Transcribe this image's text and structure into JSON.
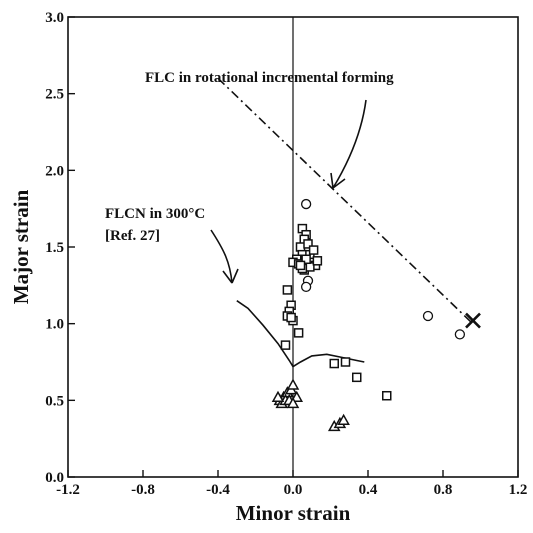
{
  "chart_data": {
    "type": "scatter",
    "title": "",
    "xlabel": "Minor strain",
    "ylabel": "Major strain",
    "xlim": [
      -1.2,
      1.2
    ],
    "ylim": [
      0.0,
      3.0
    ],
    "x_ticks": [
      "-1.2",
      "-0.8",
      "-0.4",
      "0.0",
      "0.4",
      "0.8",
      "1.2"
    ],
    "y_ticks": [
      "0.0",
      "0.5",
      "1.0",
      "1.5",
      "2.0",
      "2.5",
      "3.0"
    ],
    "grid": false,
    "legend": "none",
    "annotations": {
      "flc_label": "FLC in rotational incremental forming",
      "flcn_label_1": "FLCN in 300°C",
      "flcn_label_2": "[Ref. 27]"
    },
    "series": [
      {
        "kind": "line-dashdot",
        "label_ref": "flc_label",
        "x": [
          -0.4,
          0.95
        ],
        "y": [
          2.6,
          1.01
        ]
      },
      {
        "kind": "line-solid",
        "label_ref": "flcn_label_1",
        "x": [
          -0.3,
          -0.24,
          -0.16,
          -0.08,
          -0.02,
          0.0,
          0.04,
          0.1,
          0.18,
          0.26,
          0.34,
          0.38
        ],
        "y": [
          1.15,
          1.1,
          0.99,
          0.87,
          0.76,
          0.72,
          0.75,
          0.79,
          0.8,
          0.78,
          0.76,
          0.75
        ]
      },
      {
        "kind": "squares",
        "x": [
          0.05,
          0.07,
          0.06,
          0.04,
          0.08,
          0.05,
          0.02,
          0.09,
          0.11,
          0.1,
          0.12,
          0.0,
          0.03,
          0.06,
          0.09,
          0.13,
          0.07,
          0.05,
          0.04,
          -0.03,
          -0.01,
          -0.02,
          -0.03,
          0.0,
          -0.01,
          0.03,
          -0.04,
          0.22,
          0.28,
          0.34,
          0.5
        ],
        "y": [
          1.62,
          1.58,
          1.55,
          1.5,
          1.52,
          1.45,
          1.42,
          1.45,
          1.48,
          1.4,
          1.38,
          1.4,
          1.39,
          1.35,
          1.37,
          1.41,
          1.42,
          1.36,
          1.38,
          1.22,
          1.12,
          1.08,
          1.05,
          1.02,
          1.04,
          0.94,
          0.86,
          0.74,
          0.75,
          0.65,
          0.53
        ]
      },
      {
        "kind": "circles",
        "x": [
          0.07,
          0.08,
          0.07,
          0.72,
          0.89
        ],
        "y": [
          1.78,
          1.28,
          1.24,
          1.05,
          0.93
        ]
      },
      {
        "kind": "triangles",
        "x": [
          -0.07,
          -0.05,
          -0.03,
          -0.01,
          0.0,
          0.02,
          -0.06,
          -0.04,
          -0.02,
          0.0,
          -0.08,
          0.22,
          0.25,
          0.27
        ],
        "y": [
          0.5,
          0.52,
          0.55,
          0.57,
          0.6,
          0.52,
          0.48,
          0.5,
          0.5,
          0.48,
          0.52,
          0.33,
          0.35,
          0.37
        ]
      },
      {
        "kind": "cross",
        "x": [
          0.96
        ],
        "y": [
          1.02
        ]
      }
    ]
  }
}
